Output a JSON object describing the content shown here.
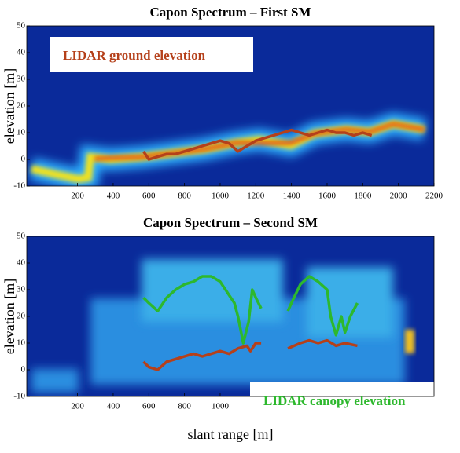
{
  "chart_data": [
    {
      "type": "line",
      "title": "Capon Spectrum – First SM",
      "y_label": "elevation [m]",
      "xlim": [
        -85,
        2200
      ],
      "ylim": [
        -10,
        50
      ],
      "xticks": [
        200,
        400,
        600,
        800,
        1000,
        1200,
        1400,
        1600,
        1800,
        2000,
        2200
      ],
      "yticks": [
        -10,
        0,
        10,
        20,
        30,
        40,
        50
      ],
      "series": [
        {
          "name": "LIDAR ground elevation",
          "color": "#b5401a",
          "x": [
            570,
            600,
            650,
            700,
            750,
            800,
            850,
            900,
            950,
            1000,
            1050,
            1100,
            1150,
            1200,
            1250,
            1300,
            1350,
            1400,
            1450,
            1500,
            1550,
            1600,
            1650,
            1700,
            1750,
            1800,
            1850
          ],
          "values": [
            3,
            0,
            1,
            2,
            2,
            3,
            4,
            5,
            6,
            7,
            6,
            3,
            5,
            7,
            8,
            9,
            10,
            11,
            10,
            9,
            10,
            11,
            10,
            10,
            9,
            10,
            9
          ]
        }
      ]
    },
    {
      "type": "line",
      "title": "Capon Spectrum – Second SM",
      "y_label": "elevation [m]",
      "x_label": "slant range [m]",
      "xlim": [
        -85,
        2200
      ],
      "ylim": [
        -10,
        50
      ],
      "xticks": [
        200,
        400,
        600,
        800,
        1000
      ],
      "yticks": [
        -10,
        0,
        10,
        20,
        30,
        40,
        50
      ],
      "series": [
        {
          "name": "LIDAR canopy elevation",
          "color": "#2db82d",
          "x": [
            570,
            600,
            650,
            700,
            750,
            800,
            850,
            900,
            950,
            1000,
            1050,
            1080,
            1100,
            1130,
            1160,
            1180,
            1200,
            1230,
            1300,
            1380,
            1400,
            1450,
            1500,
            1550,
            1600,
            1620,
            1650,
            1680,
            1700,
            1730,
            1770
          ],
          "values": [
            27,
            25,
            22,
            27,
            30,
            32,
            33,
            35,
            35,
            33,
            28,
            25,
            20,
            10,
            18,
            30,
            27,
            23,
            null,
            22,
            25,
            32,
            35,
            33,
            30,
            20,
            13,
            20,
            14,
            20,
            25
          ]
        },
        {
          "color": "#b5401a",
          "x": [
            570,
            600,
            650,
            700,
            750,
            800,
            850,
            900,
            950,
            1000,
            1050,
            1100,
            1150,
            1170,
            1200,
            1230,
            1300,
            1380,
            1450,
            1500,
            1550,
            1600,
            1650,
            1700,
            1770
          ],
          "values": [
            3,
            1,
            0,
            3,
            4,
            5,
            6,
            5,
            6,
            7,
            6,
            8,
            9,
            7,
            10,
            10,
            null,
            8,
            10,
            11,
            10,
            11,
            9,
            10,
            9
          ]
        }
      ]
    }
  ]
}
